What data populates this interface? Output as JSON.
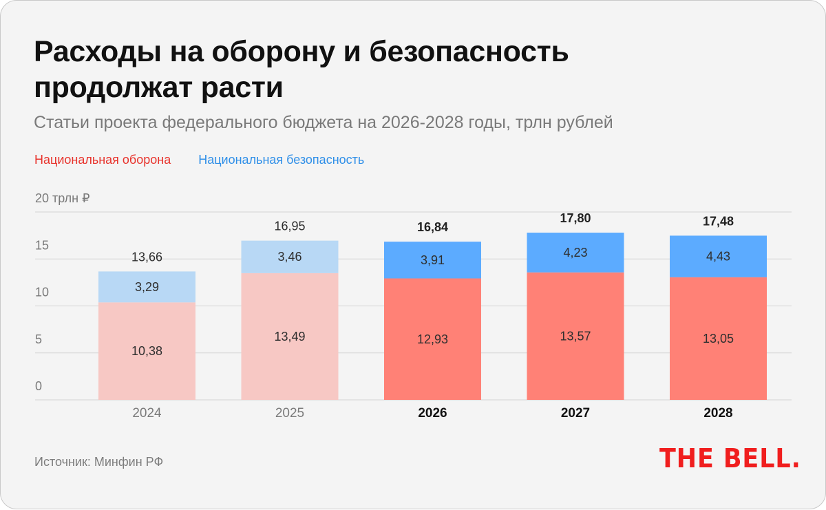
{
  "header": {
    "title": "Расходы на оборону и безопасность продолжат расти",
    "subtitle": "Статьи проекта федерального бюджета на 2026-2028 годы, трлн рублей"
  },
  "legend": [
    {
      "label": "Национальная оборона",
      "color": "#e8332c"
    },
    {
      "label": "Национальная безопасность",
      "color": "#2f8fe8"
    }
  ],
  "footer": {
    "source": "Источник: Минфин РФ",
    "logo": "THE BELL."
  },
  "colors": {
    "defense_past": "#f7c8c4",
    "security_past": "#b8d8f5",
    "defense_plan": "#ff8176",
    "security_plan": "#5cabff",
    "grid": "#d3d3d3"
  },
  "chart_data": {
    "type": "bar",
    "stacked": true,
    "title": "Расходы на оборону и безопасность продолжат расти",
    "subtitle": "Статьи проекта федерального бюджета на 2026-2028 годы, трлн рублей",
    "xlabel": "",
    "ylabel": "",
    "categories": [
      "2024",
      "2025",
      "2026",
      "2027",
      "2028"
    ],
    "highlighted_categories": [
      "2026",
      "2027",
      "2028"
    ],
    "series": [
      {
        "name": "Национальная оборона",
        "values": [
          10.38,
          13.49,
          12.93,
          13.57,
          13.05
        ],
        "labels": [
          "10,38",
          "13,49",
          "12,93",
          "13,57",
          "13,05"
        ]
      },
      {
        "name": "Национальная безопасность",
        "values": [
          3.29,
          3.46,
          3.91,
          4.23,
          4.43
        ],
        "labels": [
          "3,29",
          "3,46",
          "3,91",
          "4,23",
          "4,43"
        ]
      }
    ],
    "totals": [
      13.66,
      16.95,
      16.84,
      17.8,
      17.48
    ],
    "total_labels": [
      "13,66",
      "16,95",
      "16,84",
      "17,80",
      "17,48"
    ],
    "ylim": [
      0,
      20
    ],
    "yticks": [
      0,
      5,
      10,
      15,
      20
    ],
    "ytick_labels": [
      "0",
      "5",
      "10",
      "15",
      "20 трлн ₽"
    ],
    "grid": true,
    "legend_position": "top-left"
  }
}
